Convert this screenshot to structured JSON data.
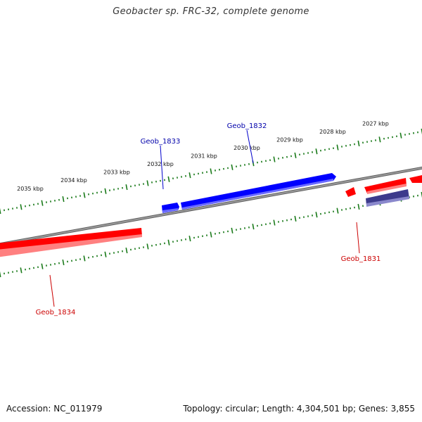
{
  "title": "Geobacter sp. FRC-32, complete genome",
  "scale": {
    "unit": "kbp",
    "tick_labels": [
      "2035 kbp",
      "2034 kbp",
      "2033 kbp",
      "2032 kbp",
      "2031 kbp",
      "2030 kbp",
      "2029 kbp",
      "2028 kbp",
      "2027 kbp"
    ]
  },
  "genes": [
    {
      "locus": "Geob_1831",
      "strand": "reverse",
      "color": "#cc0000"
    },
    {
      "locus": "Geob_1832",
      "strand": "forward",
      "color": "#0000aa"
    },
    {
      "locus": "Geob_1833",
      "strand": "forward",
      "color": "#0000aa"
    },
    {
      "locus": "Geob_1834",
      "strand": "reverse",
      "color": "#cc0000"
    }
  ],
  "colors": {
    "forward_feature": "#0000ff",
    "reverse_feature": "#ff0000",
    "other_feature": "#3c3a8c",
    "backbone": "#808080",
    "ticks": "#1a7a1a"
  },
  "footer": {
    "accession": "Accession: NC_011979",
    "summary": "Topology: circular; Length: 4,304,501 bp; Genes: 3,855"
  }
}
